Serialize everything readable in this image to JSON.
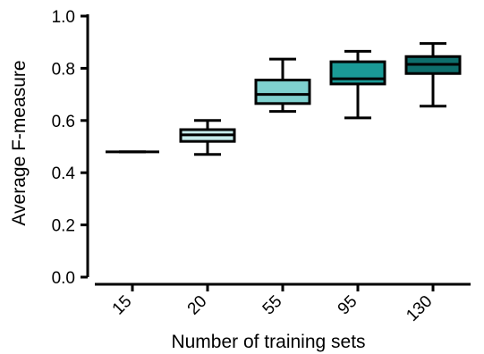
{
  "chart_data": {
    "type": "box",
    "xlabel": "Number of training sets",
    "ylabel": "Average F-measure",
    "ylim": [
      0,
      1.0
    ],
    "yticks": [
      "0.0",
      "0.2",
      "0.4",
      "0.6",
      "0.8",
      "1.0"
    ],
    "yticks_values": [
      0.0,
      0.2,
      0.4,
      0.6,
      0.8,
      1.0
    ],
    "categories": [
      "15",
      "20",
      "55",
      "95",
      "130"
    ],
    "boxes": [
      {
        "category": "15",
        "min": 0.48,
        "q1": 0.48,
        "median": 0.48,
        "q3": 0.48,
        "max": 0.48,
        "color": "#ffffff"
      },
      {
        "category": "20",
        "min": 0.47,
        "q1": 0.52,
        "median": 0.545,
        "q3": 0.565,
        "max": 0.6,
        "color": "#c6ecec"
      },
      {
        "category": "55",
        "min": 0.635,
        "q1": 0.665,
        "median": 0.7,
        "q3": 0.755,
        "max": 0.835,
        "color": "#7fd1cf"
      },
      {
        "category": "95",
        "min": 0.61,
        "q1": 0.74,
        "median": 0.76,
        "q3": 0.825,
        "max": 0.865,
        "color": "#1a9a96"
      },
      {
        "category": "130",
        "min": 0.655,
        "q1": 0.78,
        "median": 0.815,
        "q3": 0.845,
        "max": 0.895,
        "color": "#0e6e6c"
      }
    ],
    "grid": false,
    "x_tick_rotation": -45
  }
}
